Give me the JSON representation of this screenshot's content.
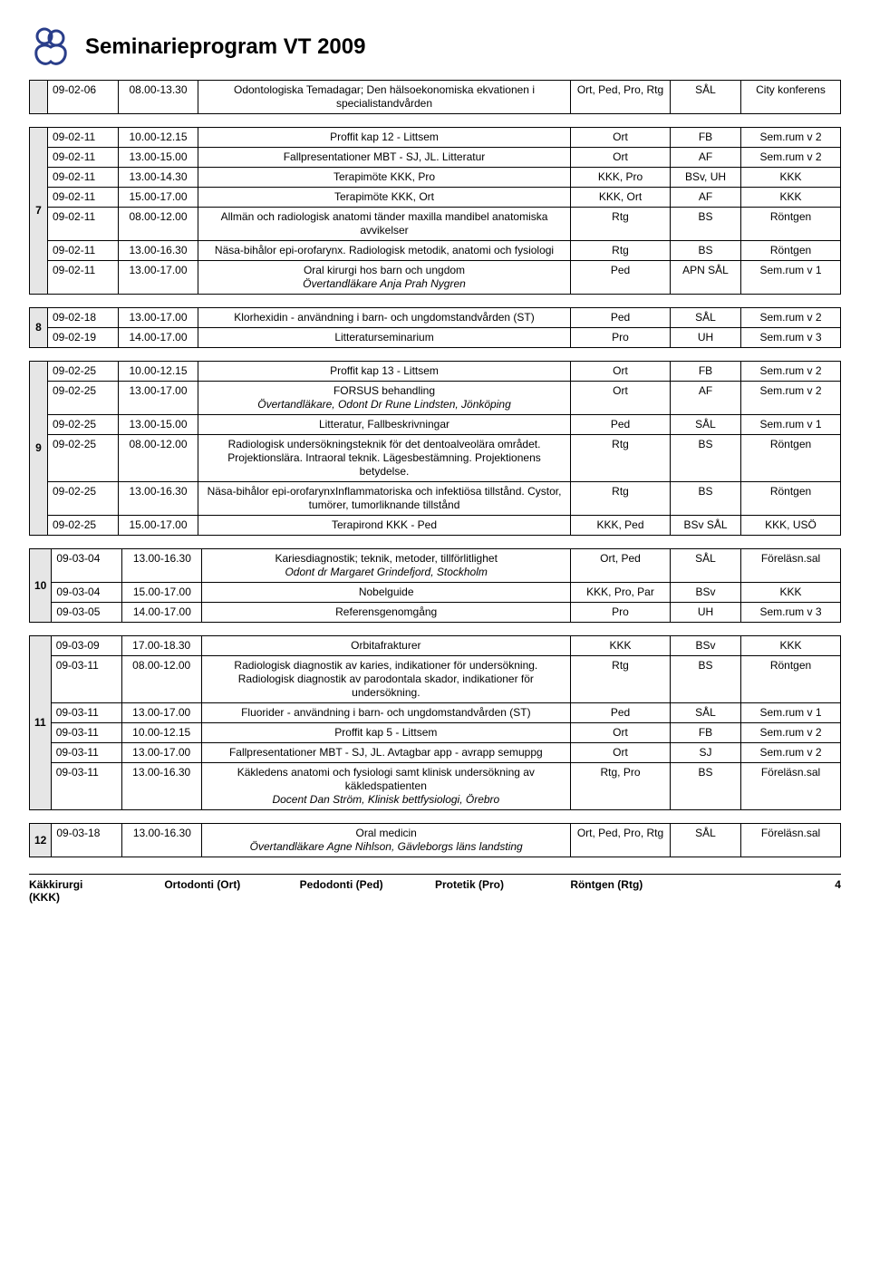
{
  "page": {
    "title": "Seminarieprogram VT 2009",
    "footer": {
      "c1a": "Käkkirurgi",
      "c1b": "(KKK)",
      "c2": "Ortodonti (Ort)",
      "c3": "Pedodonti (Ped)",
      "c4": "Protetik (Pro)",
      "c5": "Röntgen (Rtg)",
      "pagenum": "4"
    }
  },
  "blocks": [
    {
      "marker": "",
      "rows": [
        {
          "date": "09-02-06",
          "time": "08.00-13.30",
          "desc": "Odontologiska Temadagar; Den hälsoekonomiska ekvationen i specialistandvården",
          "sub": "",
          "c4": "Ort, Ped, Pro, Rtg",
          "c4small": true,
          "c5": "SÅL",
          "c6": "City konferens"
        }
      ]
    },
    {
      "marker": "7",
      "rows": [
        {
          "date": "09-02-11",
          "time": "10.00-12.15",
          "desc": "Proffit kap 12 - Littsem",
          "sub": "",
          "c4": "Ort",
          "c5": "FB",
          "c6": "Sem.rum v 2"
        },
        {
          "date": "09-02-11",
          "time": "13.00-15.00",
          "desc": "Fallpresentationer MBT - SJ, JL. Litteratur",
          "sub": "",
          "c4": "Ort",
          "c5": "AF",
          "c6": "Sem.rum v 2"
        },
        {
          "date": "09-02-11",
          "time": "13.00-14.30",
          "desc": "Terapimöte KKK, Pro",
          "sub": "",
          "c4": "KKK, Pro",
          "c5": "BSv, UH",
          "c6": "KKK"
        },
        {
          "date": "09-02-11",
          "time": "15.00-17.00",
          "desc": "Terapimöte KKK, Ort",
          "sub": "",
          "c4": "KKK, Ort",
          "c5": "AF",
          "c6": "KKK"
        },
        {
          "date": "09-02-11",
          "time": "08.00-12.00",
          "desc": "Allmän och radiologisk anatomi tänder maxilla mandibel anatomiska avvikelser",
          "sub": "",
          "c4": "Rtg",
          "c5": "BS",
          "c6": "Röntgen"
        },
        {
          "date": "09-02-11",
          "time": "13.00-16.30",
          "desc": "Näsa-bihålor epi-orofarynx. Radiologisk metodik, anatomi och fysiologi",
          "sub": "",
          "c4": "Rtg",
          "c5": "BS",
          "c6": "Röntgen"
        },
        {
          "date": "09-02-11",
          "time": "13.00-17.00",
          "desc": "Oral kirurgi hos barn och ungdom",
          "sub": "Övertandläkare Anja Prah Nygren",
          "c4": "Ped",
          "c5": "APN SÅL",
          "c6": "Sem.rum v 1"
        }
      ]
    },
    {
      "marker": "8",
      "rows": [
        {
          "date": "09-02-18",
          "time": "13.00-17.00",
          "desc": "Klorhexidin - användning i barn- och ungdomstandvården (ST)",
          "sub": "",
          "c4": "Ped",
          "c5": "SÅL",
          "c6": "Sem.rum v 2"
        },
        {
          "date": "09-02-19",
          "time": "14.00-17.00",
          "desc": "Litteraturseminarium",
          "sub": "",
          "c4": "Pro",
          "c5": "UH",
          "c6": "Sem.rum v 3"
        }
      ]
    },
    {
      "marker": "9",
      "rows": [
        {
          "date": "09-02-25",
          "time": "10.00-12.15",
          "desc": "Proffit kap 13 - Littsem",
          "sub": "",
          "c4": "Ort",
          "c5": "FB",
          "c6": "Sem.rum v 2"
        },
        {
          "date": "09-02-25",
          "time": "13.00-17.00",
          "desc": "FORSUS behandling",
          "sub": "Övertandläkare, Odont Dr Rune Lindsten, Jönköping",
          "c4": "Ort",
          "c5": "AF",
          "c6": "Sem.rum v 2"
        },
        {
          "date": "09-02-25",
          "time": "13.00-15.00",
          "desc": "Litteratur, Fallbeskrivningar",
          "sub": "",
          "c4": "Ped",
          "c5": "SÅL",
          "c6": "Sem.rum v 1"
        },
        {
          "date": "09-02-25",
          "time": "08.00-12.00",
          "desc": "Radiologisk undersökningsteknik för det dentoalveolära området. Projektionslära. Intraoral teknik. Lägesbestämning. Projektionens betydelse.",
          "sub": "",
          "c4": "Rtg",
          "c5": "BS",
          "c6": "Röntgen"
        },
        {
          "date": "09-02-25",
          "time": "13.00-16.30",
          "desc": "Näsa-bihålor epi-orofarynxInflammatoriska och infektiösa tillstånd. Cystor, tumörer, tumorliknande tillstånd",
          "sub": "",
          "c4": "Rtg",
          "c5": "BS",
          "c6": "Röntgen"
        },
        {
          "date": "09-02-25",
          "time": "15.00-17.00",
          "desc": "Terapirond KKK - Ped",
          "sub": "",
          "c4": "KKK, Ped",
          "c5": "BSv SÅL",
          "c6": "KKK, USÖ"
        }
      ]
    },
    {
      "marker": "10",
      "rows": [
        {
          "date": "09-03-04",
          "time": "13.00-16.30",
          "desc": "Kariesdiagnostik; teknik, metoder, tillförlitlighet",
          "sub": "Odont dr Margaret Grindefjord, Stockholm",
          "c4": "Ort, Ped",
          "c5": "SÅL",
          "c6": "Föreläsn.sal"
        },
        {
          "date": "09-03-04",
          "time": "15.00-17.00",
          "desc": "Nobelguide",
          "sub": "",
          "c4": "KKK, Pro, Par",
          "c5": "BSv",
          "c6": "KKK"
        },
        {
          "date": "09-03-05",
          "time": "14.00-17.00",
          "desc": "Referensgenomgång",
          "sub": "",
          "c4": "Pro",
          "c5": "UH",
          "c6": "Sem.rum v 3"
        }
      ]
    },
    {
      "marker": "11",
      "rows": [
        {
          "date": "09-03-09",
          "time": "17.00-18.30",
          "desc": "Orbitafrakturer",
          "sub": "",
          "c4": "KKK",
          "c5": "BSv",
          "c6": "KKK"
        },
        {
          "date": "09-03-11",
          "time": "08.00-12.00",
          "desc": "Radiologisk diagnostik av karies, indikationer för undersökning. Radiologisk diagnostik av parodontala skador, indikationer för undersökning.",
          "sub": "",
          "c4": "Rtg",
          "c5": "BS",
          "c6": "Röntgen"
        },
        {
          "date": "09-03-11",
          "time": "13.00-17.00",
          "desc": "Fluorider - användning i barn- och ungdomstandvården (ST)",
          "sub": "",
          "c4": "Ped",
          "c5": "SÅL",
          "c6": "Sem.rum v 1"
        },
        {
          "date": "09-03-11",
          "time": "10.00-12.15",
          "desc": "Proffit kap 5 - Littsem",
          "sub": "",
          "c4": "Ort",
          "c5": "FB",
          "c6": "Sem.rum v 2"
        },
        {
          "date": "09-03-11",
          "time": "13.00-17.00",
          "desc": "Fallpresentationer MBT - SJ, JL. Avtagbar app - avrapp semuppg",
          "sub": "",
          "c4": "Ort",
          "c5": "SJ",
          "c6": "Sem.rum v 2"
        },
        {
          "date": "09-03-11",
          "time": "13.00-16.30",
          "desc": "Käkledens anatomi och fysiologi samt klinisk undersökning av käkledspatienten",
          "sub": "Docent Dan Ström, Klinisk bettfysiologi, Örebro",
          "c4": "Rtg, Pro",
          "c5": "BS",
          "c6": "Föreläsn.sal"
        }
      ]
    },
    {
      "marker": "12",
      "rows": [
        {
          "date": "09-03-18",
          "time": "13.00-16.30",
          "desc": "Oral medicin",
          "sub": "Övertandläkare Agne Nihlson, Gävleborgs läns landsting",
          "c4": "Ort, Ped, Pro, Rtg",
          "c4small": true,
          "c5": "SÅL",
          "c6": "Föreläsn.sal"
        }
      ]
    }
  ]
}
